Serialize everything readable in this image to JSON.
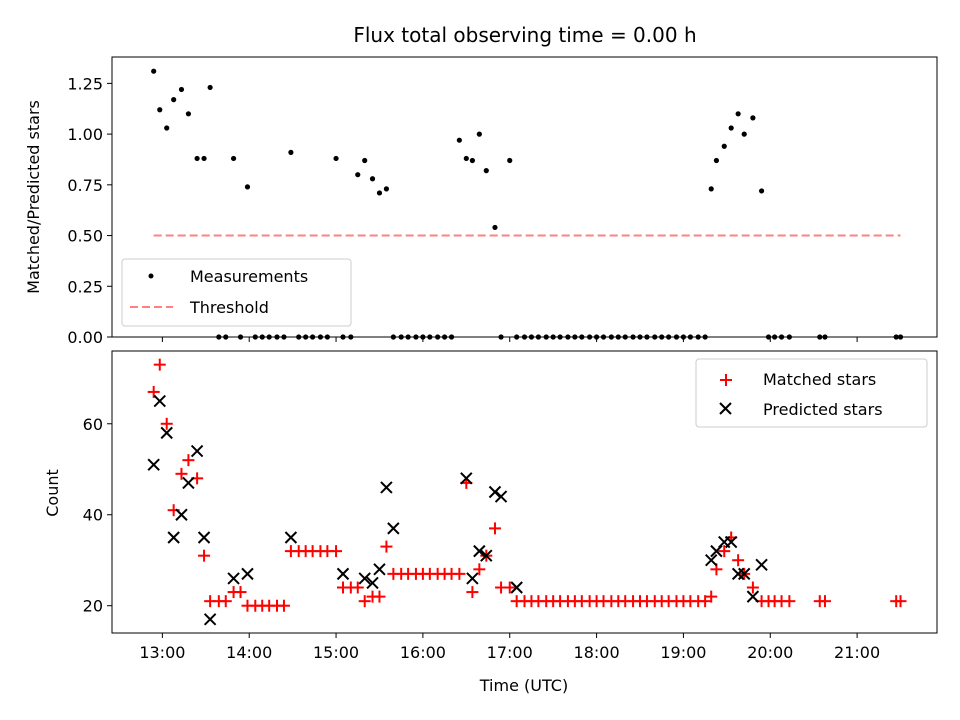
{
  "chart_data": [
    {
      "type": "scatter",
      "title": "Flux total observing time = 0.00 h",
      "xlabel": "",
      "ylabel": "Matched/Predicted stars",
      "xlim": [
        12.42,
        21.92
      ],
      "ylim": [
        0,
        1.38
      ],
      "yticks": [
        0.0,
        0.25,
        0.5,
        0.75,
        1.0,
        1.25
      ],
      "ytick_labels": [
        "0.00",
        "0.25",
        "0.50",
        "0.75",
        "1.00",
        "1.25"
      ],
      "legend": {
        "location": "lower-left",
        "entries": [
          "Measurements",
          "Threshold"
        ]
      },
      "series": [
        {
          "name": "Measurements",
          "marker": "dot",
          "color": "#000000",
          "x": [
            12.9,
            12.97,
            13.05,
            13.13,
            13.22,
            13.3,
            13.4,
            13.48,
            13.55,
            13.65,
            13.73,
            13.82,
            13.9,
            13.98,
            14.07,
            14.15,
            14.23,
            14.32,
            14.4,
            14.48,
            14.57,
            14.65,
            14.73,
            14.82,
            14.9,
            15.0,
            15.08,
            15.17,
            15.25,
            15.33,
            15.42,
            15.5,
            15.58,
            15.66,
            15.75,
            15.83,
            15.92,
            16.0,
            16.08,
            16.17,
            16.25,
            16.33,
            16.42,
            16.5,
            16.57,
            16.65,
            16.73,
            16.83,
            16.9,
            17.0,
            17.08,
            17.17,
            17.25,
            17.33,
            17.42,
            17.5,
            17.58,
            17.67,
            17.75,
            17.83,
            17.92,
            18.0,
            18.08,
            18.17,
            18.25,
            18.33,
            18.42,
            18.5,
            18.58,
            18.67,
            18.75,
            18.83,
            18.92,
            19.0,
            19.08,
            19.17,
            19.25,
            19.32,
            19.38,
            19.47,
            19.55,
            19.63,
            19.7,
            19.8,
            19.9,
            19.98,
            20.05,
            20.13,
            20.22,
            20.57,
            20.63,
            21.45,
            21.5
          ],
          "y": [
            1.31,
            1.12,
            1.03,
            1.17,
            1.22,
            1.1,
            0.88,
            0.88,
            1.23,
            0.0,
            0.0,
            0.88,
            0.0,
            0.74,
            0.0,
            0.0,
            0.0,
            0.0,
            0.0,
            0.91,
            0.0,
            0.0,
            0.0,
            0.0,
            0.0,
            0.88,
            0.0,
            0.0,
            0.8,
            0.87,
            0.78,
            0.71,
            0.73,
            0.0,
            0.0,
            0.0,
            0.0,
            0.0,
            0.0,
            0.0,
            0.0,
            0.0,
            0.97,
            0.88,
            0.87,
            1.0,
            0.82,
            0.54,
            0.0,
            0.87,
            0.0,
            0.0,
            0.0,
            0.0,
            0.0,
            0.0,
            0.0,
            0.0,
            0.0,
            0.0,
            0.0,
            0.0,
            0.0,
            0.0,
            0.0,
            0.0,
            0.0,
            0.0,
            0.0,
            0.0,
            0.0,
            0.0,
            0.0,
            0.0,
            0.0,
            0.0,
            0.0,
            0.73,
            0.87,
            0.94,
            1.03,
            1.1,
            1.0,
            1.08,
            0.72,
            0.0,
            0.0,
            0.0,
            0.0,
            0.0,
            0.0,
            0.0,
            0.0
          ]
        },
        {
          "name": "Threshold",
          "style": "dashed",
          "color": "#ff8080",
          "x": [
            12.9,
            21.5
          ],
          "y": [
            0.5,
            0.5
          ]
        }
      ]
    },
    {
      "type": "scatter",
      "title": "",
      "xlabel": "Time (UTC)",
      "ylabel": "Count",
      "xlim": [
        12.42,
        21.92
      ],
      "ylim": [
        14,
        76
      ],
      "xticks": [
        13,
        14,
        15,
        16,
        17,
        18,
        19,
        20,
        21
      ],
      "xtick_labels": [
        "13:00",
        "14:00",
        "15:00",
        "16:00",
        "17:00",
        "18:00",
        "19:00",
        "20:00",
        "21:00"
      ],
      "yticks": [
        20,
        40,
        60
      ],
      "ytick_labels": [
        "20",
        "40",
        "60"
      ],
      "legend": {
        "location": "top-right",
        "entries": [
          "Matched stars",
          "Predicted stars"
        ]
      },
      "series": [
        {
          "name": "Matched stars",
          "marker": "plus",
          "color": "#ff0000",
          "x": [
            12.9,
            12.97,
            13.05,
            13.13,
            13.22,
            13.3,
            13.4,
            13.48,
            13.55,
            13.65,
            13.73,
            13.82,
            13.9,
            13.98,
            14.07,
            14.15,
            14.23,
            14.32,
            14.4,
            14.48,
            14.57,
            14.65,
            14.73,
            14.82,
            14.9,
            15.0,
            15.08,
            15.17,
            15.25,
            15.33,
            15.42,
            15.5,
            15.58,
            15.66,
            15.75,
            15.83,
            15.92,
            16.0,
            16.08,
            16.17,
            16.25,
            16.33,
            16.42,
            16.5,
            16.57,
            16.65,
            16.73,
            16.83,
            16.9,
            17.0,
            17.08,
            17.17,
            17.25,
            17.33,
            17.42,
            17.5,
            17.58,
            17.67,
            17.75,
            17.83,
            17.92,
            18.0,
            18.08,
            18.17,
            18.25,
            18.33,
            18.42,
            18.5,
            18.58,
            18.67,
            18.75,
            18.83,
            18.92,
            19.0,
            19.08,
            19.17,
            19.25,
            19.32,
            19.38,
            19.47,
            19.55,
            19.63,
            19.7,
            19.8,
            19.9,
            19.98,
            20.05,
            20.13,
            20.22,
            20.57,
            20.63,
            21.45,
            21.5
          ],
          "y": [
            67,
            73,
            60,
            41,
            49,
            52,
            48,
            31,
            21,
            21,
            21,
            23,
            23,
            20,
            20,
            20,
            20,
            20,
            20,
            32,
            32,
            32,
            32,
            32,
            32,
            32,
            24,
            24,
            24,
            21,
            22,
            22,
            33,
            27,
            27,
            27,
            27,
            27,
            27,
            27,
            27,
            27,
            27,
            47,
            23,
            28,
            31,
            37,
            24,
            24,
            21,
            21,
            21,
            21,
            21,
            21,
            21,
            21,
            21,
            21,
            21,
            21,
            21,
            21,
            21,
            21,
            21,
            21,
            21,
            21,
            21,
            21,
            21,
            21,
            21,
            21,
            21,
            22,
            28,
            32,
            35,
            30,
            27,
            24,
            21,
            21,
            21,
            21,
            21,
            21,
            21,
            21,
            21
          ]
        },
        {
          "name": "Predicted stars",
          "marker": "x",
          "color": "#000000",
          "x": [
            12.9,
            12.97,
            13.05,
            13.13,
            13.22,
            13.3,
            13.4,
            13.48,
            13.55,
            13.82,
            13.98,
            14.48,
            15.08,
            15.33,
            15.42,
            15.5,
            15.58,
            15.66,
            16.5,
            16.57,
            16.65,
            16.73,
            16.83,
            16.9,
            17.08,
            19.32,
            19.38,
            19.47,
            19.55,
            19.63,
            19.7,
            19.8,
            19.9
          ],
          "y": [
            51,
            65,
            58,
            35,
            40,
            47,
            54,
            35,
            17,
            26,
            27,
            35,
            27,
            26,
            25,
            28,
            46,
            37,
            48,
            26,
            32,
            31,
            45,
            44,
            24,
            30,
            32,
            34,
            34,
            27,
            27,
            22,
            29
          ]
        }
      ]
    }
  ]
}
